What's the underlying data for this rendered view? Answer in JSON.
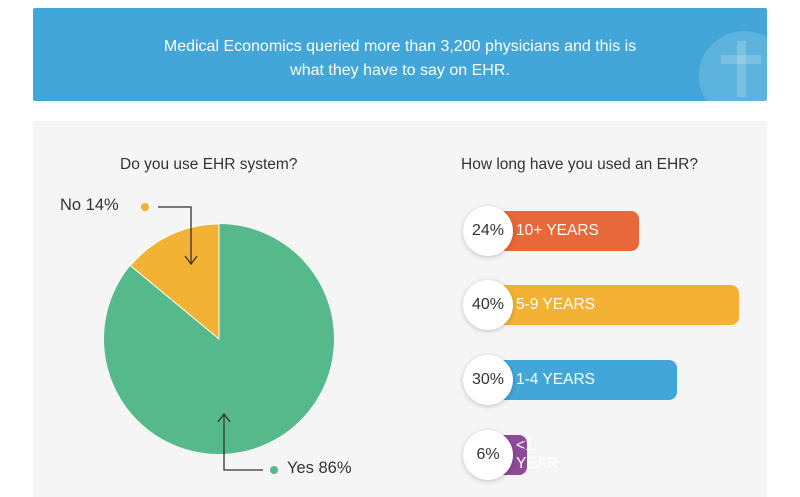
{
  "banner": {
    "line1": "Medical Economics queried more than 3,200 physicians and this is",
    "line2": "what they have to say on EHR."
  },
  "chart_data": [
    {
      "type": "pie",
      "title": "Do you use EHR system?",
      "slices": [
        {
          "label": "Yes 86%",
          "value": 86,
          "color": "#55b98b"
        },
        {
          "label": "No 14%",
          "value": 14,
          "color": "#f2b233"
        }
      ]
    },
    {
      "type": "bar",
      "title": "How long have you used an EHR?",
      "bars": [
        {
          "label": "10+ YEARS",
          "value": 24,
          "pct_label": "24%",
          "color": "#e8683a"
        },
        {
          "label": "5-9 YEARS",
          "value": 40,
          "pct_label": "40%",
          "color": "#f3b233"
        },
        {
          "label": "1-4 YEARS",
          "value": 30,
          "pct_label": "30%",
          "color": "#42a7d8"
        },
        {
          "label": "<1 YEAR",
          "value": 6,
          "pct_label": "6%",
          "color": "#8e4a97"
        }
      ]
    }
  ]
}
